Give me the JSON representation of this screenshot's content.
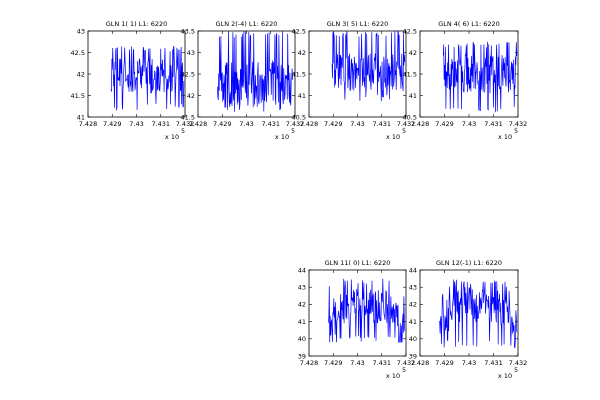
{
  "chart_data": [
    {
      "type": "line",
      "title": "GLN  1( 1) L1: 6220",
      "xlim": [
        742800,
        743200
      ],
      "xticks": [
        "7.428",
        "7.429",
        "7.43",
        "7.431",
        "7.432"
      ],
      "x_multiplier": "x 10",
      "x_exponent": "5",
      "ylim": [
        41,
        43
      ],
      "yticks": [
        "41",
        "41.5",
        "42",
        "42.5",
        "43"
      ],
      "series_color": "#0000ff",
      "x_data_range": [
        742895,
        743195
      ],
      "y_range": [
        41.15,
        42.65
      ],
      "y_mean": 41.95
    },
    {
      "type": "line",
      "title": "GLN  2(-4) L1: 6220",
      "xlim": [
        742800,
        743200
      ],
      "xticks": [
        "7.428",
        "7.429",
        "7.43",
        "7.431",
        "7.432"
      ],
      "x_multiplier": "x 10",
      "x_exponent": "5",
      "ylim": [
        41.5,
        43.5
      ],
      "yticks": [
        "41.5",
        "42",
        "42.5",
        "43",
        "43.5"
      ],
      "series_color": "#0000ff",
      "x_data_range": [
        742880,
        743190
      ],
      "y_range": [
        41.6,
        43.5
      ],
      "y_mean": 42.3
    },
    {
      "type": "line",
      "title": "GLN  3( 5) L1: 6220",
      "xlim": [
        742800,
        743200
      ],
      "xticks": [
        "7.428",
        "7.429",
        "7.43",
        "7.431",
        "7.432"
      ],
      "x_multiplier": "x 10",
      "x_exponent": "5",
      "ylim": [
        40.5,
        42.5
      ],
      "yticks": [
        "40.5",
        "41",
        "41.5",
        "42",
        "42.5"
      ],
      "series_color": "#0000ff",
      "x_data_range": [
        742895,
        743195
      ],
      "y_range": [
        40.85,
        42.5
      ],
      "y_mean": 41.55
    },
    {
      "type": "line",
      "title": "GLN  4( 6) L1: 6220",
      "xlim": [
        742800,
        743200
      ],
      "xticks": [
        "7.428",
        "7.429",
        "7.43",
        "7.431",
        "7.432"
      ],
      "x_multiplier": "x 10",
      "x_exponent": "5",
      "ylim": [
        40.5,
        42.5
      ],
      "yticks": [
        "40.5",
        "41",
        "41.5",
        "42",
        "42.5"
      ],
      "series_color": "#0000ff",
      "x_data_range": [
        742895,
        743195
      ],
      "y_range": [
        40.6,
        42.25
      ],
      "y_mean": 41.5
    },
    {
      "type": "line",
      "title": "GLN 11( 0) L1: 6220",
      "xlim": [
        742800,
        743200
      ],
      "xticks": [
        "7.428",
        "7.429",
        "7.43",
        "7.431",
        "7.432"
      ],
      "x_multiplier": "x 10",
      "x_exponent": "5",
      "ylim": [
        39,
        44
      ],
      "yticks": [
        "39",
        "40",
        "41",
        "42",
        "43",
        "44"
      ],
      "series_color": "#0000ff",
      "x_data_range": [
        742880,
        743195
      ],
      "y_range": [
        39.8,
        43.5
      ],
      "y_mean": 41.9
    },
    {
      "type": "line",
      "title": "GLN 12(-1) L1: 6220",
      "xlim": [
        742800,
        743200
      ],
      "xticks": [
        "7.428",
        "7.429",
        "7.43",
        "7.431",
        "7.432"
      ],
      "x_multiplier": "x 10",
      "x_exponent": "5",
      "ylim": [
        39,
        44
      ],
      "yticks": [
        "39",
        "40",
        "41",
        "42",
        "43",
        "44"
      ],
      "series_color": "#0000ff",
      "x_data_range": [
        742880,
        743195
      ],
      "y_range": [
        39.5,
        43.5
      ],
      "y_mean": 41.95
    }
  ]
}
